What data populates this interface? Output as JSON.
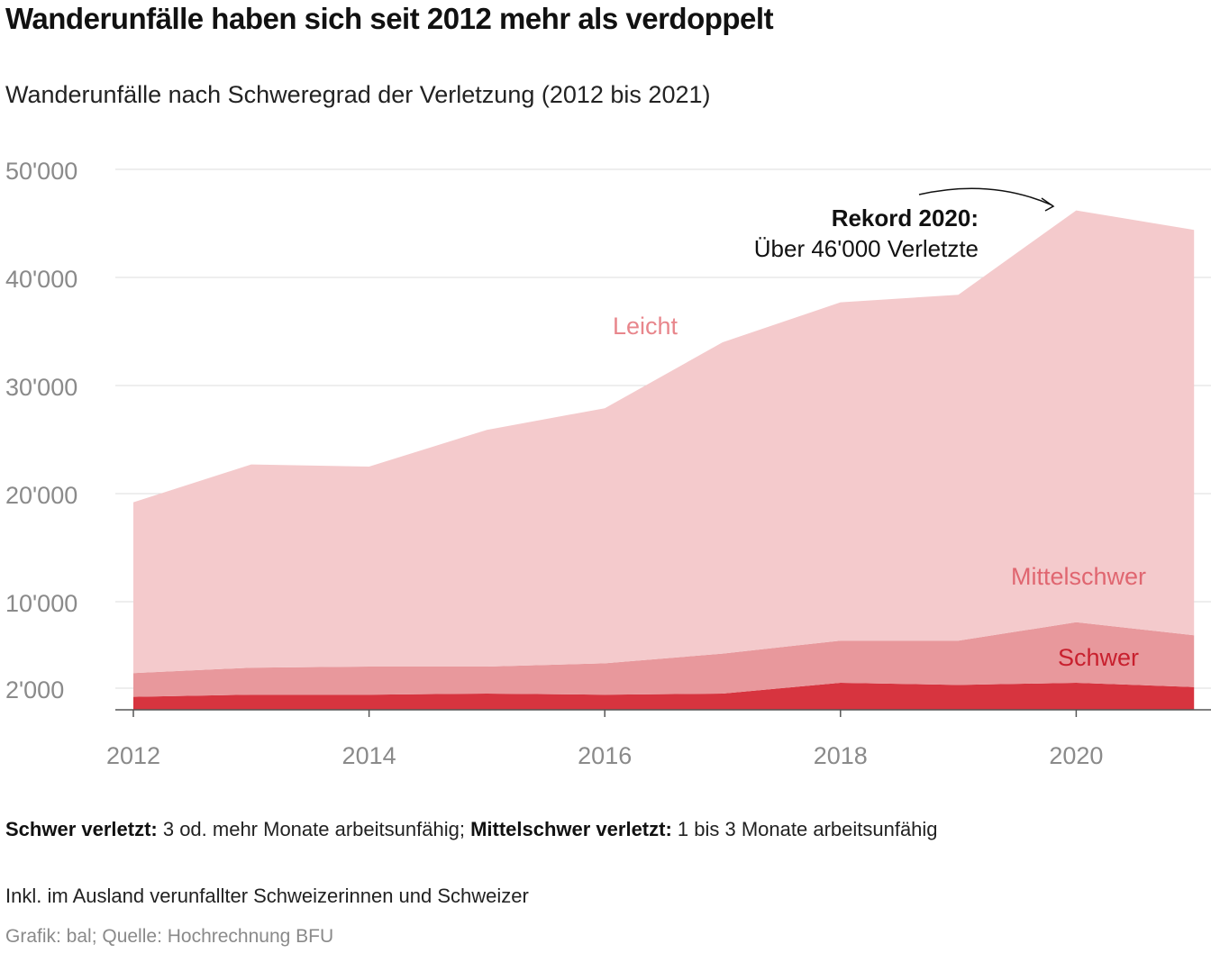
{
  "header": {
    "title": "Wanderunfälle haben sich seit 2012 mehr als verdoppelt",
    "subtitle": "Wanderunfälle nach Schweregrad der Verletzung (2012 bis 2021)"
  },
  "chart_data": {
    "type": "area",
    "stacked": true,
    "x": [
      2012,
      2013,
      2014,
      2015,
      2016,
      2017,
      2018,
      2019,
      2020,
      2021
    ],
    "series": [
      {
        "name": "Schwer",
        "color": "#d7343f",
        "values": [
          1200,
          1400,
          1400,
          1500,
          1400,
          1500,
          2500,
          2300,
          2500,
          2100
        ]
      },
      {
        "name": "Mittelschwer",
        "color": "#e8989c",
        "values": [
          2200,
          2500,
          2600,
          2500,
          2900,
          3700,
          3900,
          4100,
          5600,
          4800
        ]
      },
      {
        "name": "Leicht",
        "color": "#f4cacc",
        "values": [
          15800,
          18800,
          18500,
          21900,
          23600,
          28800,
          31300,
          32000,
          38100,
          37500
        ]
      }
    ],
    "yticks": [
      2000,
      10000,
      20000,
      30000,
      40000,
      50000
    ],
    "ytick_labels": [
      "2'000",
      "10'000",
      "20'000",
      "30'000",
      "40'000",
      "50'000"
    ],
    "xticks": [
      2012,
      2014,
      2016,
      2018,
      2020
    ],
    "xtick_labels": [
      "2012",
      "2014",
      "2016",
      "2018",
      "2020"
    ],
    "ylim": [
      0,
      50000
    ],
    "series_labels": {
      "leicht": "Leicht",
      "mittelschwer": "Mittelschwer",
      "schwer": "Schwer"
    },
    "label_colors": {
      "leicht": "#e8868c",
      "mittelschwer": "#e06670",
      "schwer": "#c8202e"
    },
    "annotation": {
      "bold": "Rekord 2020:",
      "text": "Über 46'000 Verletzte",
      "year": 2020
    }
  },
  "footer": {
    "note_schwer_label": "Schwer verletzt:",
    "note_schwer_text": " 3 od. mehr Monate arbeitsunfähig; ",
    "note_mittel_label": "Mittelschwer verletzt:",
    "note_mittel_text": " 1 bis 3 Monate arbeitsunfähig",
    "note_ausland": "Inkl. im Ausland verunfallter Schweizerinnen und Schweizer",
    "source": "Grafik: bal; Quelle: Hochrechnung BFU"
  }
}
